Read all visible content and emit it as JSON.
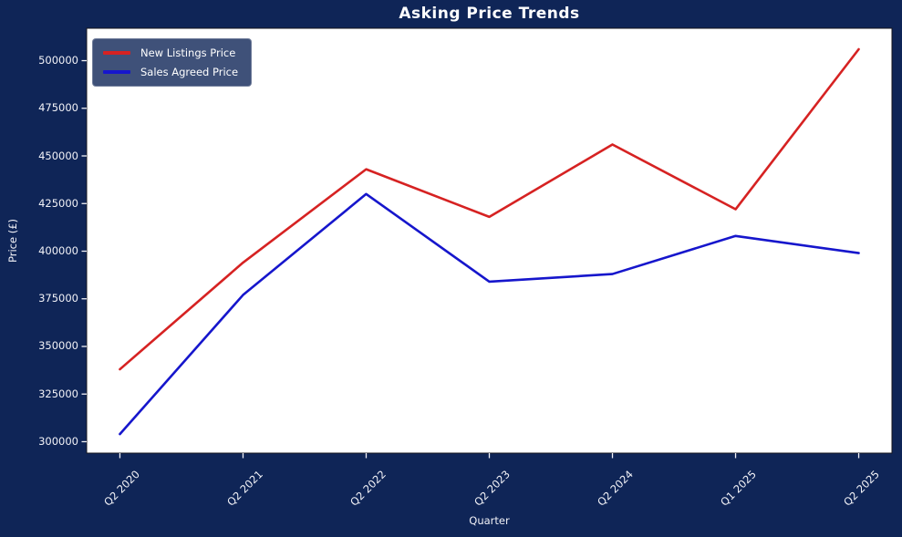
{
  "figure": {
    "background_color": "#0f2557",
    "plot_background_color": "#ffffff",
    "text_color": "#f2f2f7",
    "legend_background": "#3f5179"
  },
  "chart_data": {
    "type": "line",
    "title": "Asking Price Trends",
    "xlabel": "Quarter",
    "ylabel": "Price (£)",
    "categories": [
      "Q2 2020",
      "Q2 2021",
      "Q2 2022",
      "Q2 2023",
      "Q2 2024",
      "Q1 2025",
      "Q2 2025"
    ],
    "series": [
      {
        "name": "New Listings Price",
        "color": "#d62222",
        "values": [
          338000,
          394000,
          443000,
          418000,
          456000,
          422000,
          506000
        ]
      },
      {
        "name": "Sales Agreed Price",
        "color": "#1616cc",
        "values": [
          304000,
          377000,
          430000,
          384000,
          388000,
          408000,
          399000
        ]
      }
    ],
    "ylim": [
      294000,
      517000
    ],
    "yticks": [
      300000,
      325000,
      350000,
      375000,
      400000,
      425000,
      450000,
      475000,
      500000
    ],
    "ytick_labels": [
      "300000",
      "325000",
      "350000",
      "375000",
      "400000",
      "425000",
      "450000",
      "475000",
      "500000"
    ],
    "grid": false,
    "legend_position": "upper left"
  }
}
